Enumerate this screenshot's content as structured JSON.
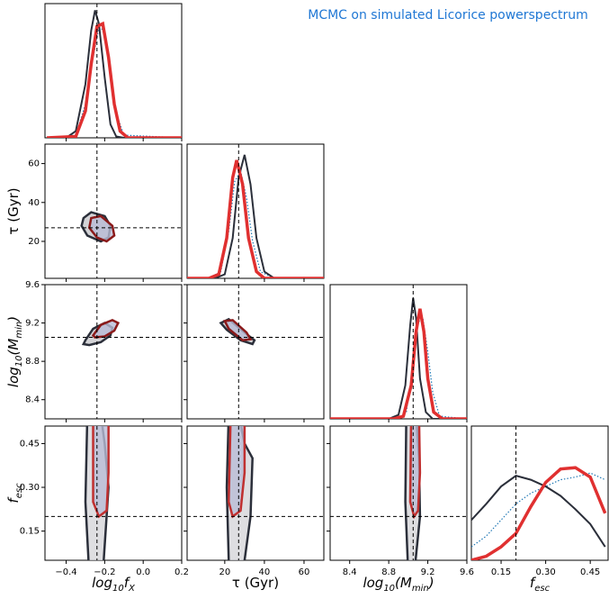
{
  "chart_data": {
    "type": "corner",
    "title": "MCMC on simulated Licorice powerspectrum",
    "title_color": "#1f77d4",
    "params": [
      {
        "label": {
          "parts": [
            "log",
            "10",
            "f",
            "X"
          ],
          "sub": [
            false,
            true,
            false,
            true
          ],
          "italic": true
        },
        "lim": [
          -0.51,
          0.2
        ],
        "ticks": [
          {
            "value": -0.4,
            "label": "−0.4"
          },
          {
            "value": -0.2,
            "label": "−0.2"
          },
          {
            "value": 0,
            "label": "0.0"
          },
          0.2
        ],
        "truth": -0.24
      },
      {
        "label": {
          "parts": [
            "τ (Gyr)"
          ],
          "sub": [
            false
          ],
          "italic": false
        },
        "lim": [
          1,
          70
        ],
        "ticks": [
          20,
          40,
          60
        ],
        "truth": 27
      },
      {
        "label": {
          "parts": [
            "log",
            "10",
            "(M",
            "min",
            ")"
          ],
          "sub": [
            false,
            true,
            false,
            true,
            false
          ],
          "italic": true
        },
        "lim": [
          8.2,
          9.6
        ],
        "ticks": [
          8.4,
          8.8,
          9.2,
          9.6
        ],
        "truth": 9.05
      },
      {
        "label": {
          "parts": [
            "f",
            "esc"
          ],
          "sub": [
            false,
            true
          ],
          "italic": true
        },
        "lim": [
          0.05,
          0.51
        ],
        "ticks": [
          0.15,
          {
            "value": 0.3,
            "label": "0.30"
          },
          0.45
        ],
        "truth": 0.2
      }
    ],
    "diag_ylim": [
      0,
      1
    ],
    "diagonal": [
      {
        "series": [
          {
            "color": "#1f77b4",
            "style": "dotted",
            "x": [
              -0.5,
              -0.35,
              -0.3,
              -0.26,
              -0.23,
              -0.2,
              -0.17,
              -0.14,
              -0.1,
              0.2
            ],
            "values": [
              0,
              0.02,
              0.25,
              0.6,
              0.82,
              0.8,
              0.5,
              0.18,
              0.02,
              0
            ]
          },
          {
            "color": "#2b2f3a",
            "style": "solid",
            "x": [
              -0.5,
              -0.4,
              -0.35,
              -0.3,
              -0.27,
              -0.25,
              -0.23,
              -0.2,
              -0.17,
              -0.14,
              -0.1,
              0.2
            ],
            "values": [
              0,
              0,
              0.05,
              0.4,
              0.8,
              0.95,
              0.85,
              0.45,
              0.1,
              0.01,
              0,
              0
            ]
          },
          {
            "color": "#e03030",
            "style": "solid",
            "x": [
              -0.5,
              -0.35,
              -0.3,
              -0.27,
              -0.24,
              -0.21,
              -0.18,
              -0.15,
              -0.12,
              -0.08,
              0.2
            ],
            "values": [
              0,
              0.01,
              0.2,
              0.55,
              0.83,
              0.85,
              0.6,
              0.25,
              0.05,
              0,
              0
            ]
          }
        ]
      },
      {
        "series": [
          {
            "color": "#1f77b4",
            "style": "dotted",
            "x": [
              1,
              12,
              18,
              22,
              25,
              28,
              31,
              34,
              38,
              45,
              70
            ],
            "values": [
              0,
              0,
              0.05,
              0.35,
              0.72,
              0.8,
              0.6,
              0.28,
              0.05,
              0,
              0
            ]
          },
          {
            "color": "#2b2f3a",
            "style": "solid",
            "x": [
              1,
              15,
              20,
              24,
              27,
              30,
              33,
              36,
              40,
              45,
              70
            ],
            "values": [
              0,
              0,
              0.03,
              0.3,
              0.75,
              0.92,
              0.7,
              0.3,
              0.05,
              0,
              0
            ]
          },
          {
            "color": "#e03030",
            "style": "solid",
            "x": [
              1,
              12,
              17,
              21,
              24,
              26,
              29,
              32,
              36,
              40,
              70
            ],
            "values": [
              0,
              0,
              0.03,
              0.3,
              0.75,
              0.88,
              0.7,
              0.3,
              0.05,
              0,
              0
            ]
          }
        ]
      },
      {
        "series": [
          {
            "color": "#1f77b4",
            "style": "dotted",
            "x": [
              8.2,
              8.9,
              8.98,
              9.05,
              9.1,
              9.15,
              9.2,
              9.25,
              9.32,
              9.6
            ],
            "values": [
              0,
              0,
              0.05,
              0.4,
              0.72,
              0.75,
              0.5,
              0.2,
              0.02,
              0
            ]
          },
          {
            "color": "#2b2f3a",
            "style": "solid",
            "x": [
              8.2,
              8.8,
              8.9,
              8.97,
              9.02,
              9.05,
              9.08,
              9.12,
              9.18,
              9.25,
              9.6
            ],
            "values": [
              0,
              0,
              0.03,
              0.25,
              0.7,
              0.9,
              0.75,
              0.3,
              0.05,
              0,
              0
            ]
          },
          {
            "color": "#e03030",
            "style": "solid",
            "x": [
              8.2,
              8.85,
              8.95,
              9.03,
              9.08,
              9.12,
              9.16,
              9.2,
              9.26,
              9.35,
              9.6
            ],
            "values": [
              0,
              0,
              0.02,
              0.25,
              0.65,
              0.82,
              0.65,
              0.3,
              0.05,
              0,
              0
            ]
          }
        ]
      },
      {
        "series": [
          {
            "color": "#1f77b4",
            "style": "dotted",
            "x": [
              0.05,
              0.1,
              0.15,
              0.2,
              0.25,
              0.3,
              0.35,
              0.4,
              0.45,
              0.5
            ],
            "values": [
              0.1,
              0.18,
              0.3,
              0.42,
              0.5,
              0.55,
              0.6,
              0.62,
              0.65,
              0.6
            ]
          },
          {
            "color": "#2b2f3a",
            "style": "solid",
            "x": [
              0.05,
              0.1,
              0.15,
              0.2,
              0.25,
              0.3,
              0.35,
              0.4,
              0.45,
              0.5
            ],
            "values": [
              0.3,
              0.42,
              0.55,
              0.63,
              0.6,
              0.55,
              0.48,
              0.38,
              0.27,
              0.1
            ]
          },
          {
            "color": "#e03030",
            "style": "solid",
            "x": [
              0.05,
              0.1,
              0.15,
              0.2,
              0.25,
              0.3,
              0.35,
              0.4,
              0.45,
              0.5
            ],
            "values": [
              0,
              0.03,
              0.1,
              0.2,
              0.4,
              0.58,
              0.68,
              0.69,
              0.62,
              0.35
            ]
          }
        ]
      }
    ],
    "pairs": [
      {
        "contours": [
          {
            "color": "#2b2f3a",
            "fill": "#c8c8cc",
            "x": [
              -0.31,
              -0.27,
              -0.2,
              -0.17,
              -0.18,
              -0.22,
              -0.29,
              -0.32
            ],
            "y": [
              32,
              35,
              33,
              28,
              22,
              20,
              23,
              28
            ]
          },
          {
            "color": "#8b1a1a",
            "fill": "#b9bcd6",
            "x": [
              -0.27,
              -0.22,
              -0.16,
              -0.15,
              -0.19,
              -0.24,
              -0.28
            ],
            "y": [
              32,
              33,
              28,
              23,
              20,
              22,
              27
            ]
          }
        ]
      },
      {
        "contours": [
          {
            "color": "#2b2f3a",
            "fill": "#c8c8cc",
            "x": [
              -0.3,
              -0.26,
              -0.2,
              -0.16,
              -0.17,
              -0.22,
              -0.28,
              -0.31
            ],
            "y": [
              9.02,
              9.14,
              9.2,
              9.15,
              9.07,
              9.0,
              8.97,
              8.98
            ]
          },
          {
            "color": "#8b1a1a",
            "fill": "#b9bcd6",
            "x": [
              -0.26,
              -0.22,
              -0.16,
              -0.13,
              -0.15,
              -0.2,
              -0.25
            ],
            "y": [
              9.07,
              9.18,
              9.23,
              9.2,
              9.12,
              9.06,
              9.05
            ]
          }
        ]
      },
      {
        "contours": [
          {
            "color": "#2b2f3a",
            "fill": "#c8c8cc",
            "x": [
              18,
              22,
              30,
              35,
              34,
              28,
              21
            ],
            "y": [
              9.2,
              9.24,
              9.1,
              9.02,
              8.98,
              9.02,
              9.13
            ]
          },
          {
            "color": "#8b1a1a",
            "fill": "#b9bcd6",
            "x": [
              20,
              24,
              31,
              33,
              29,
              22
            ],
            "y": [
              9.22,
              9.23,
              9.1,
              9.03,
              9.02,
              9.14
            ]
          }
        ]
      },
      {
        "contours": [
          {
            "color": "#2b2f3a",
            "fill": "#d6d6da",
            "x": [
              -0.29,
              -0.3,
              -0.28,
              -0.24,
              -0.21,
              -0.18,
              -0.2,
              -0.22
            ],
            "y": [
              0.55,
              0.25,
              0.0,
              0.0,
              0.0,
              0.3,
              0.45,
              0.55
            ]
          },
          {
            "color": "#c03030",
            "fill": "#b9bcd6",
            "x": [
              -0.26,
              -0.26,
              -0.23,
              -0.19,
              -0.18,
              -0.18
            ],
            "y": [
              0.55,
              0.25,
              0.2,
              0.22,
              0.35,
              0.55
            ]
          }
        ]
      },
      {
        "contours": [
          {
            "color": "#2b2f3a",
            "fill": "#d6d6da",
            "x": [
              22,
              21,
              22,
              26,
              30,
              33,
              34,
              30,
              27
            ],
            "y": [
              0.55,
              0.3,
              0.05,
              0.0,
              0.05,
              0.2,
              0.4,
              0.45,
              0.55
            ]
          },
          {
            "color": "#c03030",
            "fill": "#b9bcd6",
            "x": [
              23,
              22,
              24,
              28,
              30,
              30
            ],
            "y": [
              0.55,
              0.25,
              0.2,
              0.22,
              0.35,
              0.55
            ]
          }
        ]
      },
      {
        "contours": [
          {
            "color": "#2b2f3a",
            "fill": "#d6d6da",
            "x": [
              8.98,
              8.97,
              9.0,
              9.06,
              9.12,
              9.11,
              9.08
            ],
            "y": [
              0.55,
              0.25,
              0.0,
              0.0,
              0.2,
              0.4,
              0.55
            ]
          },
          {
            "color": "#c03030",
            "fill": "#b9bcd6",
            "x": [
              9.03,
              9.02,
              9.06,
              9.1,
              9.12,
              9.11
            ],
            "y": [
              0.55,
              0.25,
              0.2,
              0.22,
              0.35,
              0.55
            ]
          }
        ]
      }
    ]
  }
}
